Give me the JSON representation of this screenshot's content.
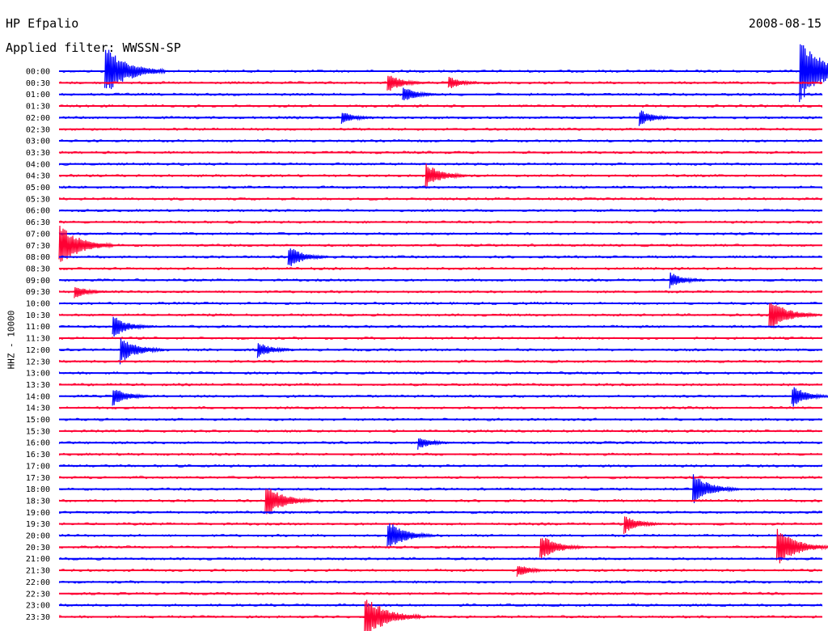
{
  "header": {
    "station": "HP Efpalio",
    "filter": "Applied filter: WWSSN-SP",
    "date": "2008-08-15"
  },
  "chart_data": {
    "type": "line",
    "title": "HP Efpalio",
    "ylabel": "HHZ - 10000",
    "date": "2008-08-15",
    "filter": "WWSSN-SP",
    "trace_colors": [
      "#0000ff",
      "#ff0033"
    ],
    "row_labels": [
      "00:00",
      "00:30",
      "01:00",
      "01:30",
      "02:00",
      "02:30",
      "03:00",
      "03:30",
      "04:00",
      "04:30",
      "05:00",
      "05:30",
      "06:00",
      "06:30",
      "07:00",
      "07:30",
      "08:00",
      "08:30",
      "09:00",
      "09:30",
      "10:00",
      "10:30",
      "11:00",
      "11:30",
      "12:00",
      "12:30",
      "13:00",
      "13:30",
      "14:00",
      "14:30",
      "15:00",
      "15:30",
      "16:00",
      "16:30",
      "17:00",
      "17:30",
      "18:00",
      "18:30",
      "19:00",
      "19:30",
      "20:00",
      "20:30",
      "21:00",
      "21:30",
      "22:00",
      "22:30",
      "23:00",
      "23:30"
    ],
    "row_duration_min": 30,
    "events": [
      {
        "row": 0,
        "t": 0.06,
        "amp": 1.8
      },
      {
        "row": 0,
        "t": 0.97,
        "amp": 2.2
      },
      {
        "row": 1,
        "t": 0.43,
        "amp": 0.7
      },
      {
        "row": 1,
        "t": 0.51,
        "amp": 0.5
      },
      {
        "row": 2,
        "t": 0.45,
        "amp": 0.6
      },
      {
        "row": 4,
        "t": 0.37,
        "amp": 0.5
      },
      {
        "row": 4,
        "t": 0.76,
        "amp": 0.6
      },
      {
        "row": 9,
        "t": 0.48,
        "amp": 0.9
      },
      {
        "row": 15,
        "t": 0.0,
        "amp": 1.5
      },
      {
        "row": 16,
        "t": 0.3,
        "amp": 0.8
      },
      {
        "row": 18,
        "t": 0.8,
        "amp": 0.6
      },
      {
        "row": 19,
        "t": 0.02,
        "amp": 0.5
      },
      {
        "row": 21,
        "t": 0.93,
        "amp": 1.2
      },
      {
        "row": 22,
        "t": 0.07,
        "amp": 0.8
      },
      {
        "row": 24,
        "t": 0.08,
        "amp": 1.0
      },
      {
        "row": 24,
        "t": 0.26,
        "amp": 0.6
      },
      {
        "row": 28,
        "t": 0.07,
        "amp": 0.7
      },
      {
        "row": 28,
        "t": 0.96,
        "amp": 0.8
      },
      {
        "row": 32,
        "t": 0.47,
        "amp": 0.5
      },
      {
        "row": 36,
        "t": 0.83,
        "amp": 1.1
      },
      {
        "row": 37,
        "t": 0.27,
        "amp": 1.2
      },
      {
        "row": 39,
        "t": 0.74,
        "amp": 0.7
      },
      {
        "row": 40,
        "t": 0.43,
        "amp": 1.1
      },
      {
        "row": 41,
        "t": 0.63,
        "amp": 1.0
      },
      {
        "row": 41,
        "t": 0.94,
        "amp": 1.4
      },
      {
        "row": 43,
        "t": 0.6,
        "amp": 0.5
      },
      {
        "row": 47,
        "t": 0.4,
        "amp": 1.6
      }
    ]
  }
}
